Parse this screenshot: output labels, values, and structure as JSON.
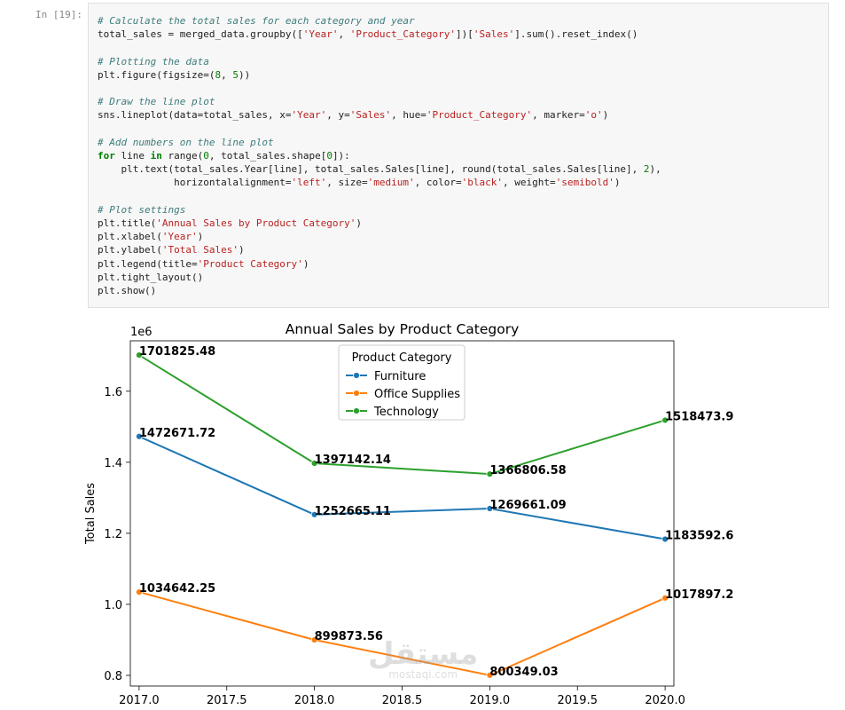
{
  "cell": {
    "prompt": "In [19]:",
    "code_lines": [
      [
        {
          "t": "# Calculate the total sales for each category and year",
          "c": "c"
        }
      ],
      [
        {
          "t": "total_sales = merged_data.groupby(["
        },
        {
          "t": "'Year'",
          "c": "s"
        },
        {
          "t": ", "
        },
        {
          "t": "'Product_Category'",
          "c": "s"
        },
        {
          "t": "])["
        },
        {
          "t": "'Sales'",
          "c": "s"
        },
        {
          "t": "].sum().reset_index()"
        }
      ],
      [],
      [
        {
          "t": "# Plotting the data",
          "c": "c"
        }
      ],
      [
        {
          "t": "plt.figure(figsize=("
        },
        {
          "t": "8",
          "c": "n"
        },
        {
          "t": ", "
        },
        {
          "t": "5",
          "c": "n"
        },
        {
          "t": "))"
        }
      ],
      [],
      [
        {
          "t": "# Draw the line plot",
          "c": "c"
        }
      ],
      [
        {
          "t": "sns.lineplot(data=total_sales, x="
        },
        {
          "t": "'Year'",
          "c": "s"
        },
        {
          "t": ", y="
        },
        {
          "t": "'Sales'",
          "c": "s"
        },
        {
          "t": ", hue="
        },
        {
          "t": "'Product_Category'",
          "c": "s"
        },
        {
          "t": ", marker="
        },
        {
          "t": "'o'",
          "c": "s"
        },
        {
          "t": ")"
        }
      ],
      [],
      [
        {
          "t": "# Add numbers on the line plot",
          "c": "c"
        }
      ],
      [
        {
          "t": "for",
          "c": "k"
        },
        {
          "t": " line "
        },
        {
          "t": "in",
          "c": "k"
        },
        {
          "t": " range("
        },
        {
          "t": "0",
          "c": "n"
        },
        {
          "t": ", total_sales.shape["
        },
        {
          "t": "0",
          "c": "n"
        },
        {
          "t": "]):"
        }
      ],
      [
        {
          "t": "    plt.text(total_sales.Year[line], total_sales.Sales[line], round(total_sales.Sales[line], "
        },
        {
          "t": "2",
          "c": "n"
        },
        {
          "t": "),"
        }
      ],
      [
        {
          "t": "             horizontalalignment="
        },
        {
          "t": "'left'",
          "c": "s"
        },
        {
          "t": ", size="
        },
        {
          "t": "'medium'",
          "c": "s"
        },
        {
          "t": ", color="
        },
        {
          "t": "'black'",
          "c": "s"
        },
        {
          "t": ", weight="
        },
        {
          "t": "'semibold'",
          "c": "s"
        },
        {
          "t": ")"
        }
      ],
      [],
      [
        {
          "t": "# Plot settings",
          "c": "c"
        }
      ],
      [
        {
          "t": "plt.title("
        },
        {
          "t": "'Annual Sales by Product Category'",
          "c": "s"
        },
        {
          "t": ")"
        }
      ],
      [
        {
          "t": "plt.xlabel("
        },
        {
          "t": "'Year'",
          "c": "s"
        },
        {
          "t": ")"
        }
      ],
      [
        {
          "t": "plt.ylabel("
        },
        {
          "t": "'Total Sales'",
          "c": "s"
        },
        {
          "t": ")"
        }
      ],
      [
        {
          "t": "plt.legend(title="
        },
        {
          "t": "'Product Category'",
          "c": "s"
        },
        {
          "t": ")"
        }
      ],
      [
        {
          "t": "plt.tight_layout()"
        }
      ],
      [
        {
          "t": "plt.show()"
        }
      ]
    ]
  },
  "watermark": {
    "text_arabic": "مستقل",
    "text_latin": "mostaqi.com"
  },
  "chart_data": {
    "type": "line",
    "title": "Annual Sales by Product Category",
    "xlabel": "Year",
    "ylabel": "Total Sales",
    "y_offset_label": "1e6",
    "x": [
      2017,
      2018,
      2019,
      2020
    ],
    "xlim": [
      2016.95,
      2020.05
    ],
    "ylim": [
      770000,
      1742000
    ],
    "xticks": [
      2017.0,
      2017.5,
      2018.0,
      2018.5,
      2019.0,
      2019.5,
      2020.0
    ],
    "xtick_labels": [
      "2017.0",
      "2017.5",
      "2018.0",
      "2018.5",
      "2019.0",
      "2019.5",
      "2020.0"
    ],
    "yticks": [
      800000,
      1000000,
      1200000,
      1400000,
      1600000
    ],
    "ytick_labels": [
      "0.8",
      "1.0",
      "1.2",
      "1.4",
      "1.6"
    ],
    "grid": false,
    "legend": {
      "title": "Product Category",
      "placement": "upper-center"
    },
    "series": [
      {
        "name": "Furniture",
        "color": "#1f77b4",
        "values": [
          1472671.72,
          1252665.11,
          1269661.09,
          1183592.62
        ],
        "labels": [
          "1472671.72",
          "1252665.11",
          "1269661.09",
          "1183592.62"
        ]
      },
      {
        "name": "Office Supplies",
        "color": "#ff7f0e",
        "values": [
          1034642.25,
          899873.56,
          800349.03,
          1017897.26
        ],
        "labels": [
          "1034642.25",
          "899873.56",
          "800349.03",
          "1017897.26"
        ]
      },
      {
        "name": "Technology",
        "color": "#2ca02c",
        "values": [
          1701825.48,
          1397142.14,
          1366806.58,
          1518473.98
        ],
        "labels": [
          "1701825.48",
          "1397142.14",
          "1366806.58",
          "1518473.98"
        ]
      }
    ]
  }
}
